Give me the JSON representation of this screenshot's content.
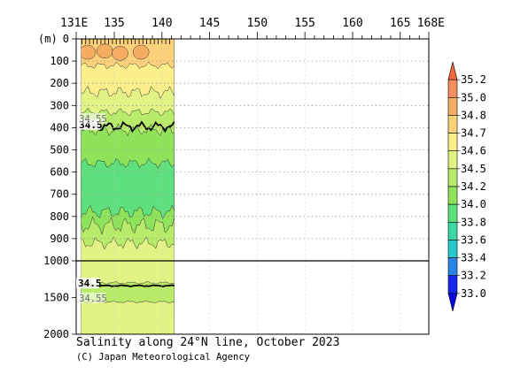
{
  "chart_data": {
    "type": "contour-section",
    "title": "Salinity along 24°N line, October 2023",
    "credit": "(C) Japan Meteorological Agency",
    "y_unit_label": "(m)",
    "x_ticks": [
      {
        "lon": 131,
        "label": "131E"
      },
      {
        "lon": 135,
        "label": "135"
      },
      {
        "lon": 140,
        "label": "140"
      },
      {
        "lon": 145,
        "label": "145"
      },
      {
        "lon": 150,
        "label": "150"
      },
      {
        "lon": 155,
        "label": "155"
      },
      {
        "lon": 160,
        "label": "160"
      },
      {
        "lon": 165,
        "label": "165"
      },
      {
        "lon": 168,
        "label": "168E"
      }
    ],
    "x_range": [
      131,
      168
    ],
    "y_ticks_upper": [
      0,
      100,
      200,
      300,
      400,
      500,
      600,
      700,
      800,
      900,
      1000
    ],
    "y_ticks_lower": [
      1500,
      2000
    ],
    "y_upper_range": [
      0,
      1000
    ],
    "y_lower_range": [
      1000,
      2000
    ],
    "data_extent_lon": [
      131.5,
      141.3
    ],
    "station_lons": [
      131.6,
      132.0,
      132.4,
      132.8,
      133.2,
      133.6,
      134.0,
      134.4,
      134.8,
      135.2,
      135.6,
      136.0,
      136.4,
      136.8,
      137.2,
      137.6,
      138.0,
      138.4,
      138.8,
      139.2,
      139.6,
      140.0,
      140.4,
      140.8
    ],
    "colorbar_levels": [
      "35.2",
      "35.0",
      "34.8",
      "34.7",
      "34.6",
      "34.5",
      "34.2",
      "34.0",
      "33.8",
      "33.6",
      "33.4",
      "33.2",
      "33.0"
    ],
    "colorbar_colors": [
      "#f06a3c",
      "#f49060",
      "#f6ad63",
      "#fbd27a",
      "#fbef8c",
      "#e3f285",
      "#b9eb6a",
      "#8fe35a",
      "#5ee07f",
      "#3dd7a6",
      "#29c7c9",
      "#2a84e6",
      "#1628ee",
      "#0a0ae0"
    ],
    "contour_labels": [
      {
        "text": "34.5",
        "depth": 398,
        "lon": 132.5
      },
      {
        "text": "34.55",
        "depth": 370,
        "lon": 132.5
      },
      {
        "text": "34.5",
        "depth": 1340,
        "lon": 132.4
      },
      {
        "text": "34.55",
        "depth": 1540,
        "lon": 132.5
      }
    ]
  }
}
